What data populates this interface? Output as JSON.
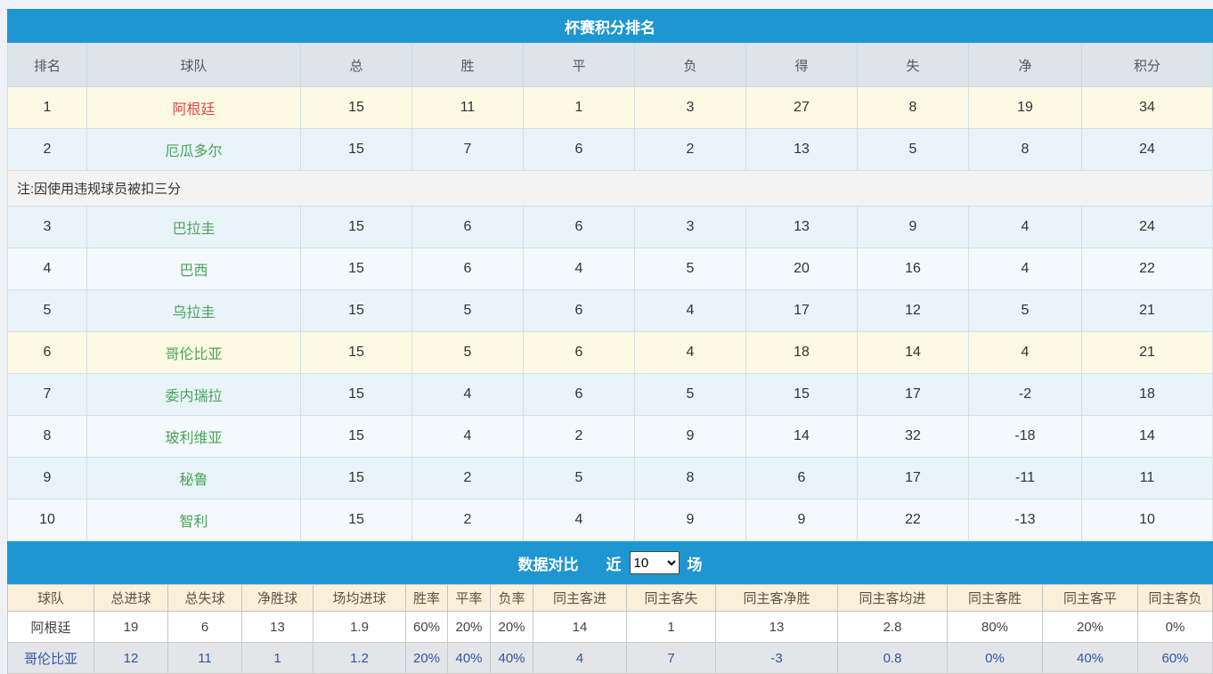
{
  "standings": {
    "title": "杯赛积分排名",
    "columns": [
      "排名",
      "球队",
      "总",
      "胜",
      "平",
      "负",
      "得",
      "失",
      "净",
      "积分"
    ],
    "rows": [
      {
        "rank": "1",
        "team": "阿根廷",
        "team_color": "red",
        "bg": "yellow",
        "values": [
          "15",
          "11",
          "1",
          "3",
          "27",
          "8",
          "19",
          "34"
        ]
      },
      {
        "rank": "2",
        "team": "厄瓜多尔",
        "team_color": "green",
        "bg": "blue",
        "values": [
          "15",
          "7",
          "6",
          "2",
          "13",
          "5",
          "8",
          "24"
        ]
      },
      {
        "note": "注:因使用违规球员被扣三分"
      },
      {
        "rank": "3",
        "team": "巴拉圭",
        "team_color": "green",
        "bg": "blue",
        "values": [
          "15",
          "6",
          "6",
          "3",
          "13",
          "9",
          "4",
          "24"
        ]
      },
      {
        "rank": "4",
        "team": "巴西",
        "team_color": "green",
        "bg": "light",
        "values": [
          "15",
          "6",
          "4",
          "5",
          "20",
          "16",
          "4",
          "22"
        ]
      },
      {
        "rank": "5",
        "team": "乌拉圭",
        "team_color": "green",
        "bg": "blue",
        "values": [
          "15",
          "5",
          "6",
          "4",
          "17",
          "12",
          "5",
          "21"
        ]
      },
      {
        "rank": "6",
        "team": "哥伦比亚",
        "team_color": "green",
        "bg": "yellow",
        "values": [
          "15",
          "5",
          "6",
          "4",
          "18",
          "14",
          "4",
          "21"
        ]
      },
      {
        "rank": "7",
        "team": "委内瑞拉",
        "team_color": "green",
        "bg": "blue",
        "values": [
          "15",
          "4",
          "6",
          "5",
          "15",
          "17",
          "-2",
          "18"
        ]
      },
      {
        "rank": "8",
        "team": "玻利维亚",
        "team_color": "green",
        "bg": "light",
        "values": [
          "15",
          "4",
          "2",
          "9",
          "14",
          "32",
          "-18",
          "14"
        ]
      },
      {
        "rank": "9",
        "team": "秘鲁",
        "team_color": "green",
        "bg": "blue",
        "values": [
          "15",
          "2",
          "5",
          "8",
          "6",
          "17",
          "-11",
          "11"
        ]
      },
      {
        "rank": "10",
        "team": "智利",
        "team_color": "green",
        "bg": "light",
        "values": [
          "15",
          "2",
          "4",
          "9",
          "9",
          "22",
          "-13",
          "10"
        ]
      }
    ]
  },
  "comparison": {
    "title": "数据对比",
    "near_label": "近",
    "matches_label": "场",
    "selected_count": "10",
    "columns": [
      "球队",
      "总进球",
      "总失球",
      "净胜球",
      "场均进球",
      "胜率",
      "平率",
      "负率",
      "同主客进",
      "同主客失",
      "同主客净胜",
      "同主客均进",
      "同主客胜",
      "同主客平",
      "同主客负"
    ],
    "rows": [
      {
        "team": "阿根廷",
        "style": "dark",
        "values": [
          "19",
          "6",
          "13",
          "1.9",
          "60%",
          "20%",
          "20%",
          "14",
          "1",
          "13",
          "2.8",
          "80%",
          "20%",
          "0%"
        ]
      },
      {
        "team": "哥伦比亚",
        "style": "blue",
        "values": [
          "12",
          "11",
          "1",
          "1.2",
          "20%",
          "40%",
          "40%",
          "4",
          "7",
          "-3",
          "0.8",
          "0%",
          "40%",
          "60%"
        ]
      }
    ]
  },
  "colors": {
    "header_blue": "#1e96d2",
    "highlight_row_yellow": "#fcfae2",
    "row_blue": "#e9f3fa",
    "standings_head_bg": "#dde4ea",
    "team_red": "#e04848",
    "team_green": "#4aa35a",
    "comparison_head_bg": "#faf0da",
    "comparison_row2_text": "#2d56a8"
  }
}
